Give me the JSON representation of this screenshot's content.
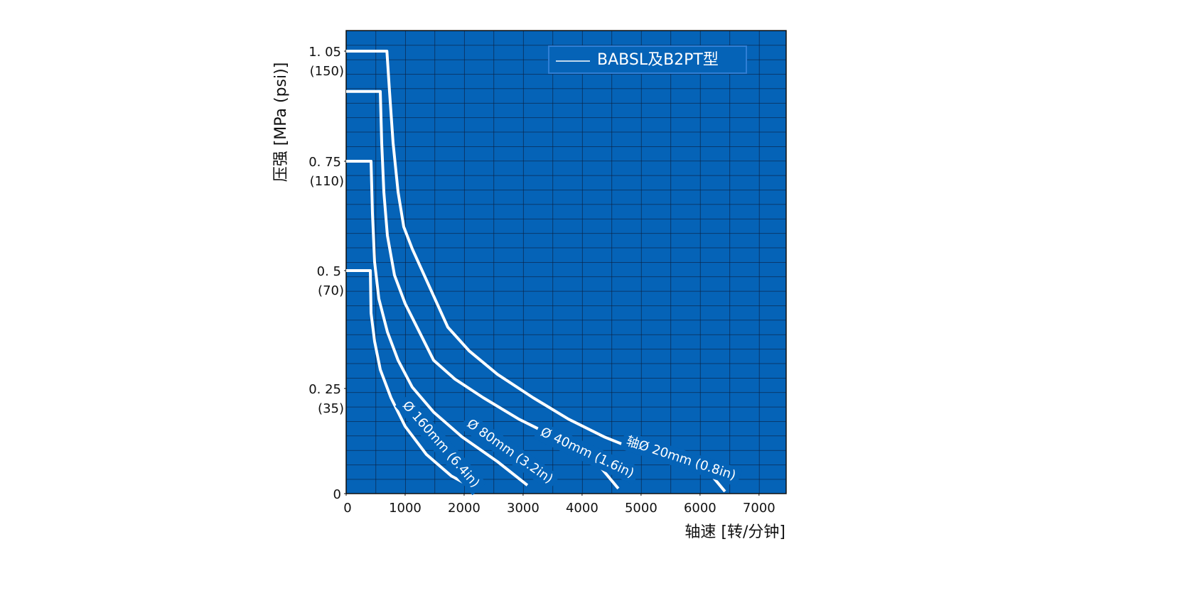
{
  "chart_data": {
    "type": "line",
    "x_label": "轴速  [转/分钟]",
    "y_label": "压强 [MPa (psi)]",
    "legend": "BABSL及B2PT型",
    "color": "#ffffff",
    "background": "#0563b7",
    "xlim": [
      0,
      7460
    ],
    "xticks": [
      0,
      1000,
      2000,
      3000,
      4000,
      5000,
      6000,
      7000
    ],
    "ylim": [
      0,
      1.106
    ],
    "yticks": [
      0,
      {
        "value": 0.25,
        "label": "0. 25",
        "psi": "(35)"
      },
      {
        "value": 0.5,
        "label": "0. 5",
        "psi": "(70)"
      },
      {
        "value": 0.75,
        "label": "0. 75",
        "psi": "(110)"
      },
      {
        "value": 1.05,
        "label": "1. 05",
        "psi": "(150)"
      }
    ],
    "grid": true,
    "series": [
      {
        "name": "Ø 160mm (6.4in)",
        "x": [
          0,
          410,
          422,
          482,
          578,
          759,
          1000,
          1361,
          1783,
          2084
        ],
        "values": [
          0.5,
          0.5,
          0.41,
          0.35,
          0.29,
          0.228,
          0.16,
          0.093,
          0.042,
          0.019
        ]
      },
      {
        "name": "Ø 80mm (3.2in)",
        "x": [
          0,
          422,
          446,
          482,
          554,
          699,
          880,
          1120,
          1482,
          1964,
          2566,
          3072
        ],
        "values": [
          0.75,
          0.75,
          0.63,
          0.52,
          0.44,
          0.37,
          0.31,
          0.253,
          0.194,
          0.135,
          0.076,
          0.02
        ]
      },
      {
        "name": "Ø 40mm (1.6in)",
        "x": [
          0,
          578,
          602,
          639,
          699,
          819,
          1000,
          1241,
          1482,
          1843,
          2325,
          2928,
          3530,
          4133,
          4614
        ],
        "values": [
          0.94,
          0.94,
          0.8,
          0.68,
          0.58,
          0.49,
          0.43,
          0.37,
          0.31,
          0.27,
          0.228,
          0.177,
          0.135,
          0.093,
          0.012
        ]
      },
      {
        "name": "轴Ø 20mm (0.8in)",
        "x": [
          0,
          690,
          735,
          795,
          880,
          976,
          1120,
          1361,
          1723,
          2084,
          2566,
          3169,
          3771,
          4373,
          4976,
          5578,
          6181,
          6422
        ],
        "values": [
          1.05,
          1.05,
          0.94,
          0.8,
          0.68,
          0.6,
          0.55,
          0.48,
          0.38,
          0.33,
          0.28,
          0.228,
          0.177,
          0.135,
          0.101,
          0.073,
          0.046,
          0.005
        ]
      }
    ]
  }
}
